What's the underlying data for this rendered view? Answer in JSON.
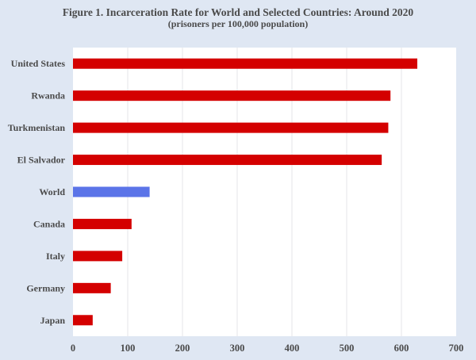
{
  "chart_data": {
    "type": "bar",
    "orientation": "horizontal",
    "title": "Figure 1. Incarceration Rate for World and Selected Countries: Around 2020",
    "subtitle": "(prisoners per 100,000 population)",
    "categories": [
      "United States",
      "Rwanda",
      "Turkmenistan",
      "El Salvador",
      "World",
      "Canada",
      "Italy",
      "Germany",
      "Japan"
    ],
    "values": [
      629,
      580,
      576,
      564,
      140,
      107,
      90,
      69,
      36
    ],
    "colors": [
      "#d40000",
      "#d40000",
      "#d40000",
      "#d40000",
      "#5b74e8",
      "#d40000",
      "#d40000",
      "#d40000",
      "#d40000"
    ],
    "xlim": [
      0,
      700
    ],
    "xticks": [
      "0",
      "100",
      "200",
      "300",
      "400",
      "500",
      "600",
      "700"
    ],
    "grid": "vertical",
    "legend": "none",
    "xlabel": "",
    "ylabel": ""
  }
}
